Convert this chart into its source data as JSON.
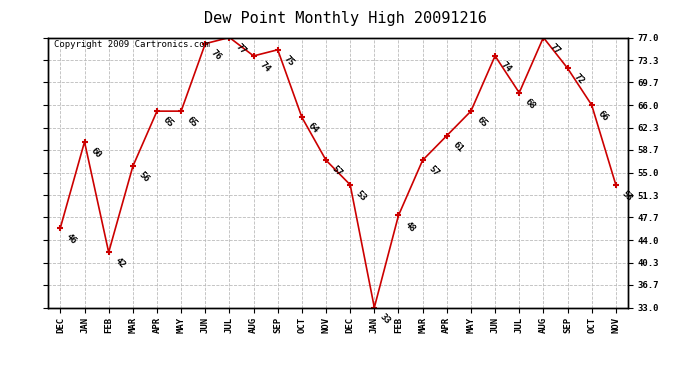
{
  "title": "Dew Point Monthly High 20091216",
  "copyright": "Copyright 2009 Cartronics.com",
  "months": [
    "DEC",
    "JAN",
    "FEB",
    "MAR",
    "APR",
    "MAY",
    "JUN",
    "JUL",
    "AUG",
    "SEP",
    "OCT",
    "NOV",
    "DEC",
    "JAN",
    "FEB",
    "MAR",
    "APR",
    "MAY",
    "JUN",
    "JUL",
    "AUG",
    "SEP",
    "OCT",
    "NOV"
  ],
  "values": [
    46,
    60,
    42,
    56,
    65,
    65,
    76,
    77,
    74,
    75,
    64,
    57,
    53,
    33,
    48,
    57,
    61,
    65,
    74,
    68,
    77,
    72,
    66,
    53
  ],
  "ylim": [
    33.0,
    77.0
  ],
  "yticks": [
    33.0,
    36.7,
    40.3,
    44.0,
    47.7,
    51.3,
    55.0,
    58.7,
    62.3,
    66.0,
    69.7,
    73.3,
    77.0
  ],
  "line_color": "#cc0000",
  "marker_color": "#cc0000",
  "bg_color": "#ffffff",
  "grid_color": "#bbbbbb",
  "title_fontsize": 11,
  "label_fontsize": 6.5,
  "tick_fontsize": 6.5,
  "copyright_fontsize": 6.5
}
